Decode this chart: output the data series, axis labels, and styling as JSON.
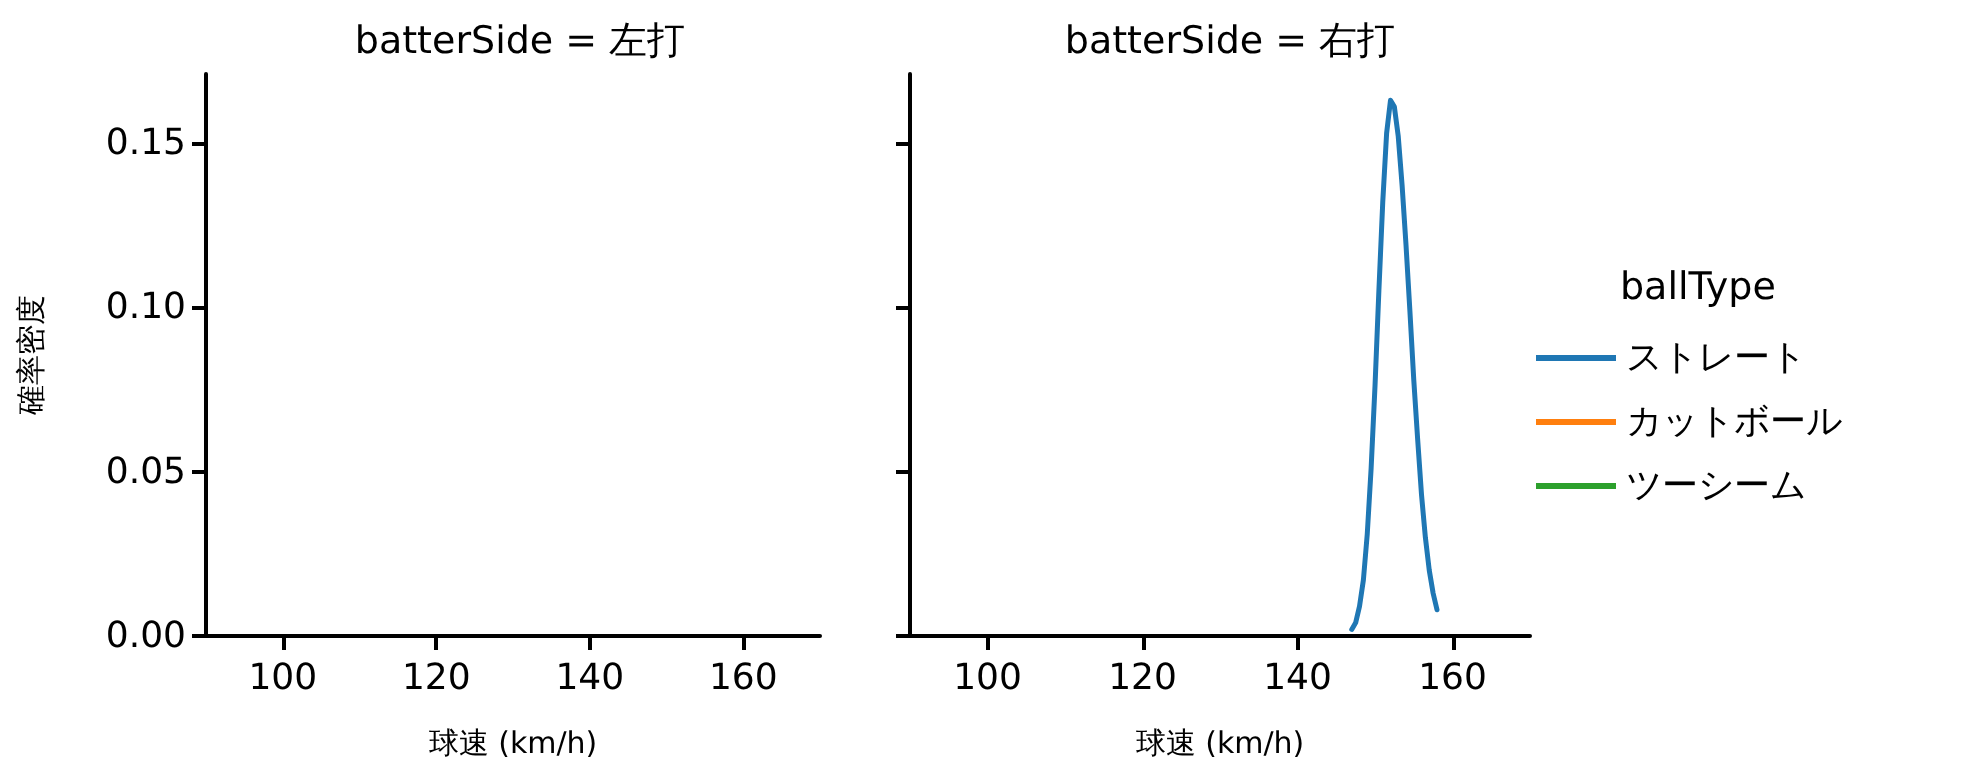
{
  "chart_data": [
    {
      "type": "line",
      "title": "batterSide = 左打",
      "xlabel": "球速 (km/h)",
      "ylabel": "確率密度",
      "xlim": [
        90,
        170
      ],
      "xticks": [
        100,
        120,
        140,
        160
      ],
      "ylim": [
        0,
        0.171
      ],
      "yticks": [
        {
          "value": 0,
          "label": "0.00"
        },
        {
          "value": 0.05,
          "label": "0.05"
        },
        {
          "value": 0.1,
          "label": "0.10"
        },
        {
          "value": 0.15,
          "label": "0.15"
        }
      ]
    },
    {
      "type": "line",
      "title": "batterSide = 右打",
      "xlabel": "球速 (km/h)",
      "legend_title": "ballType",
      "legend": "right",
      "tick_labels": "x",
      "xlim": [
        90,
        170
      ],
      "xticks": [
        100,
        120,
        140,
        160
      ],
      "ylim": [
        0,
        0.171
      ],
      "yticks": [
        0,
        0.05,
        0.1,
        0.15
      ],
      "series": [
        {
          "name": "ストレート",
          "color": "#1f77b4",
          "x": [
            147,
            147.5,
            148,
            148.5,
            149,
            149.5,
            150,
            150.5,
            151,
            151.5,
            152,
            152.5,
            153,
            153.5,
            154,
            154.5,
            155,
            155.5,
            156,
            156.5,
            157,
            157.5,
            158
          ],
          "values": [
            0.002,
            0.004,
            0.009,
            0.017,
            0.031,
            0.051,
            0.076,
            0.105,
            0.132,
            0.153,
            0.163,
            0.161,
            0.152,
            0.137,
            0.119,
            0.099,
            0.078,
            0.06,
            0.043,
            0.03,
            0.02,
            0.013,
            0.008
          ]
        },
        {
          "name": "カットボール",
          "color": "#ff7f0e"
        },
        {
          "name": "ツーシーム",
          "color": "#2ca02c"
        }
      ]
    }
  ]
}
